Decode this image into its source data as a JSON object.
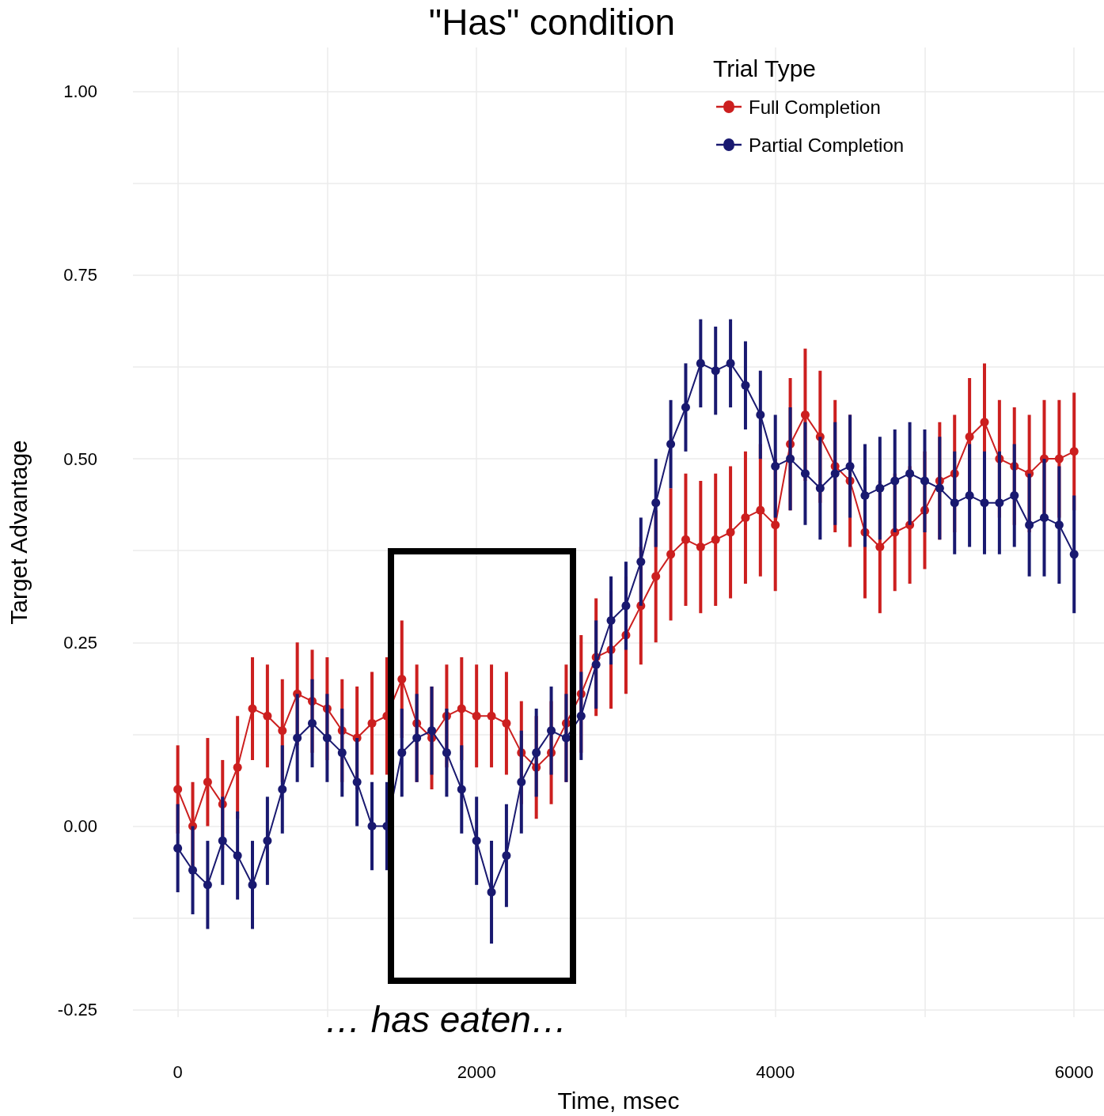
{
  "chart_data": {
    "type": "line",
    "title": "\"Has\" condition",
    "xlabel": "Time, msec",
    "ylabel": "Target Advantage",
    "legend_title": "Trial Type",
    "legend": "top right",
    "grid": true,
    "marker": "circle",
    "line_style": "solid",
    "x": [
      0,
      100,
      200,
      300,
      400,
      500,
      600,
      700,
      800,
      900,
      1000,
      1100,
      1200,
      1300,
      1400,
      1500,
      1600,
      1700,
      1800,
      1900,
      2000,
      2100,
      2200,
      2300,
      2400,
      2500,
      2600,
      2700,
      2800,
      2900,
      3000,
      3100,
      3200,
      3300,
      3400,
      3500,
      3600,
      3700,
      3800,
      3900,
      4000,
      4100,
      4200,
      4300,
      4400,
      4500,
      4600,
      4700,
      4800,
      4900,
      5000,
      5100,
      5200,
      5300,
      5400,
      5500,
      5600,
      5700,
      5800,
      5900,
      6000
    ],
    "xlim": [
      -300,
      6200
    ],
    "xticks": [
      0,
      {
        "value": 1000,
        "label": null
      },
      2000,
      {
        "value": 3000,
        "label": null
      },
      4000,
      {
        "value": 5000,
        "label": null
      },
      6000
    ],
    "ylim": [
      -0.26,
      1.06
    ],
    "yticks": [
      {
        "value": -0.25,
        "label": "-0.25"
      },
      {
        "value": -0.125,
        "label": null
      },
      {
        "value": 0,
        "label": "0.00"
      },
      {
        "value": 0.125,
        "label": null
      },
      {
        "value": 0.25,
        "label": "0.25"
      },
      {
        "value": 0.375,
        "label": null
      },
      {
        "value": 0.5,
        "label": "0.50"
      },
      {
        "value": 0.625,
        "label": null
      },
      {
        "value": 0.75,
        "label": "0.75"
      },
      {
        "value": 0.875,
        "label": null
      },
      {
        "value": 1,
        "label": "1.00"
      }
    ],
    "series": [
      {
        "name": "Full Completion",
        "color": "#cc1f1f",
        "values": [
          0.05,
          0.0,
          0.06,
          0.03,
          0.08,
          0.16,
          0.15,
          0.13,
          0.18,
          0.17,
          0.16,
          0.13,
          0.12,
          0.14,
          0.15,
          0.2,
          0.14,
          0.12,
          0.15,
          0.16,
          0.15,
          0.15,
          0.14,
          0.1,
          0.08,
          0.1,
          0.14,
          0.18,
          0.23,
          0.24,
          0.26,
          0.3,
          0.34,
          0.37,
          0.39,
          0.38,
          0.39,
          0.4,
          0.42,
          0.43,
          0.41,
          0.52,
          0.56,
          0.53,
          0.49,
          0.47,
          0.4,
          0.38,
          0.4,
          0.41,
          0.43,
          0.47,
          0.48,
          0.53,
          0.55,
          0.5,
          0.49,
          0.48,
          0.5,
          0.5,
          0.51
        ],
        "errors": [
          0.06,
          0.06,
          0.06,
          0.06,
          0.07,
          0.07,
          0.07,
          0.07,
          0.07,
          0.07,
          0.07,
          0.07,
          0.07,
          0.07,
          0.08,
          0.08,
          0.08,
          0.07,
          0.07,
          0.07,
          0.07,
          0.07,
          0.07,
          0.07,
          0.07,
          0.07,
          0.08,
          0.08,
          0.08,
          0.08,
          0.08,
          0.08,
          0.09,
          0.09,
          0.09,
          0.09,
          0.09,
          0.09,
          0.09,
          0.09,
          0.09,
          0.09,
          0.09,
          0.09,
          0.09,
          0.09,
          0.09,
          0.09,
          0.08,
          0.08,
          0.08,
          0.08,
          0.08,
          0.08,
          0.08,
          0.08,
          0.08,
          0.08,
          0.08,
          0.08,
          0.08
        ]
      },
      {
        "name": "Partial Completion",
        "color": "#191970",
        "values": [
          -0.03,
          -0.06,
          -0.08,
          -0.02,
          -0.04,
          -0.08,
          -0.02,
          0.05,
          0.12,
          0.14,
          0.12,
          0.1,
          0.06,
          0.0,
          0.0,
          0.1,
          0.12,
          0.13,
          0.1,
          0.05,
          -0.02,
          -0.09,
          -0.04,
          0.06,
          0.1,
          0.13,
          0.12,
          0.15,
          0.22,
          0.28,
          0.3,
          0.36,
          0.44,
          0.52,
          0.57,
          0.63,
          0.62,
          0.63,
          0.6,
          0.56,
          0.49,
          0.5,
          0.48,
          0.46,
          0.48,
          0.49,
          0.45,
          0.46,
          0.47,
          0.48,
          0.47,
          0.46,
          0.44,
          0.45,
          0.44,
          0.44,
          0.45,
          0.41,
          0.42,
          0.41,
          0.37
        ],
        "errors": [
          0.06,
          0.06,
          0.06,
          0.06,
          0.06,
          0.06,
          0.06,
          0.06,
          0.06,
          0.06,
          0.06,
          0.06,
          0.06,
          0.06,
          0.06,
          0.06,
          0.06,
          0.06,
          0.06,
          0.06,
          0.06,
          0.07,
          0.07,
          0.07,
          0.06,
          0.06,
          0.06,
          0.06,
          0.06,
          0.06,
          0.06,
          0.06,
          0.06,
          0.06,
          0.06,
          0.06,
          0.06,
          0.06,
          0.06,
          0.06,
          0.07,
          0.07,
          0.07,
          0.07,
          0.07,
          0.07,
          0.07,
          0.07,
          0.07,
          0.07,
          0.07,
          0.07,
          0.07,
          0.07,
          0.07,
          0.07,
          0.07,
          0.07,
          0.08,
          0.08,
          0.08
        ]
      }
    ],
    "annotations": [
      "… has eaten…"
    ]
  }
}
